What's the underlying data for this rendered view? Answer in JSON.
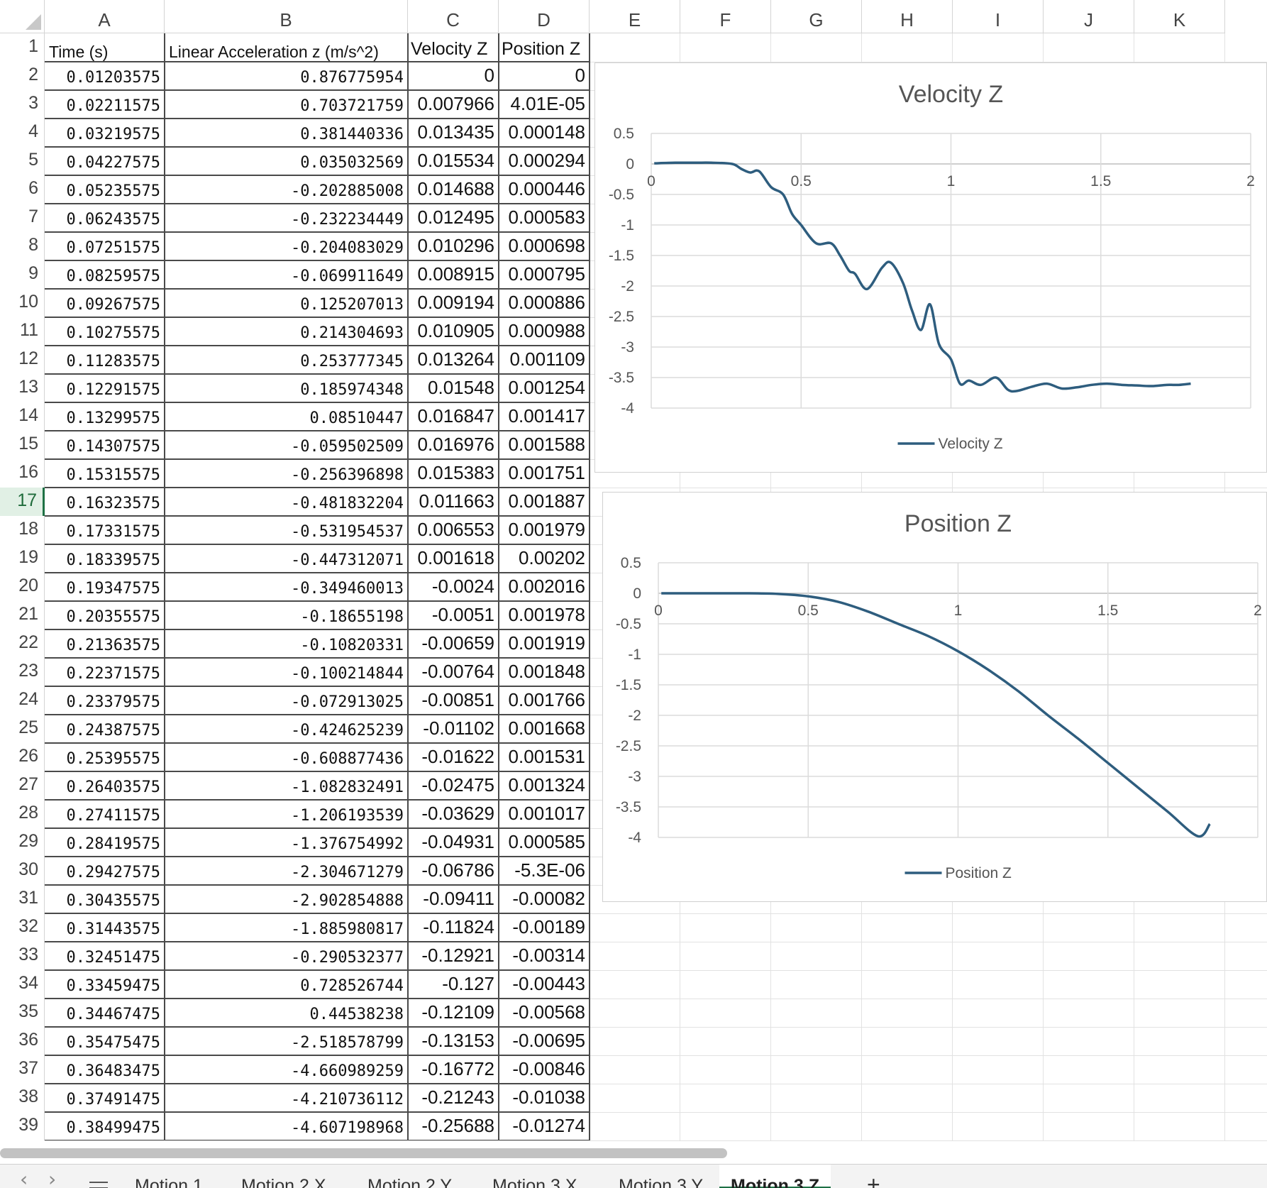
{
  "columns": [
    "A",
    "B",
    "C",
    "D",
    "E",
    "F",
    "G",
    "H",
    "I",
    "J",
    "K"
  ],
  "header_row": {
    "row": "1",
    "a": "Time (s)",
    "b": "Linear Acceleration z (m/s^2)",
    "c": "Velocity Z",
    "d": "Position Z"
  },
  "active_row": "17",
  "rows": [
    {
      "n": "2",
      "a": "0.01203575",
      "b": "0.876775954",
      "c": "0",
      "d": "0"
    },
    {
      "n": "3",
      "a": "0.02211575",
      "b": "0.703721759",
      "c": "0.007966",
      "d": "4.01E-05"
    },
    {
      "n": "4",
      "a": "0.03219575",
      "b": "0.381440336",
      "c": "0.013435",
      "d": "0.000148"
    },
    {
      "n": "5",
      "a": "0.04227575",
      "b": "0.035032569",
      "c": "0.015534",
      "d": "0.000294"
    },
    {
      "n": "6",
      "a": "0.05235575",
      "b": "-0.202885008",
      "c": "0.014688",
      "d": "0.000446"
    },
    {
      "n": "7",
      "a": "0.06243575",
      "b": "-0.232234449",
      "c": "0.012495",
      "d": "0.000583"
    },
    {
      "n": "8",
      "a": "0.07251575",
      "b": "-0.204083029",
      "c": "0.010296",
      "d": "0.000698"
    },
    {
      "n": "9",
      "a": "0.08259575",
      "b": "-0.069911649",
      "c": "0.008915",
      "d": "0.000795"
    },
    {
      "n": "10",
      "a": "0.09267575",
      "b": "0.125207013",
      "c": "0.009194",
      "d": "0.000886"
    },
    {
      "n": "11",
      "a": "0.10275575",
      "b": "0.214304693",
      "c": "0.010905",
      "d": "0.000988"
    },
    {
      "n": "12",
      "a": "0.11283575",
      "b": "0.253777345",
      "c": "0.013264",
      "d": "0.001109"
    },
    {
      "n": "13",
      "a": "0.12291575",
      "b": "0.185974348",
      "c": "0.01548",
      "d": "0.001254"
    },
    {
      "n": "14",
      "a": "0.13299575",
      "b": "0.08510447",
      "c": "0.016847",
      "d": "0.001417"
    },
    {
      "n": "15",
      "a": "0.14307575",
      "b": "-0.059502509",
      "c": "0.016976",
      "d": "0.001588"
    },
    {
      "n": "16",
      "a": "0.15315575",
      "b": "-0.256396898",
      "c": "0.015383",
      "d": "0.001751"
    },
    {
      "n": "17",
      "a": "0.16323575",
      "b": "-0.481832204",
      "c": "0.011663",
      "d": "0.001887"
    },
    {
      "n": "18",
      "a": "0.17331575",
      "b": "-0.531954537",
      "c": "0.006553",
      "d": "0.001979"
    },
    {
      "n": "19",
      "a": "0.18339575",
      "b": "-0.447312071",
      "c": "0.001618",
      "d": "0.00202"
    },
    {
      "n": "20",
      "a": "0.19347575",
      "b": "-0.349460013",
      "c": "-0.0024",
      "d": "0.002016"
    },
    {
      "n": "21",
      "a": "0.20355575",
      "b": "-0.18655198",
      "c": "-0.0051",
      "d": "0.001978"
    },
    {
      "n": "22",
      "a": "0.21363575",
      "b": "-0.10820331",
      "c": "-0.00659",
      "d": "0.001919"
    },
    {
      "n": "23",
      "a": "0.22371575",
      "b": "-0.100214844",
      "c": "-0.00764",
      "d": "0.001848"
    },
    {
      "n": "24",
      "a": "0.23379575",
      "b": "-0.072913025",
      "c": "-0.00851",
      "d": "0.001766"
    },
    {
      "n": "25",
      "a": "0.24387575",
      "b": "-0.424625239",
      "c": "-0.01102",
      "d": "0.001668"
    },
    {
      "n": "26",
      "a": "0.25395575",
      "b": "-0.608877436",
      "c": "-0.01622",
      "d": "0.001531"
    },
    {
      "n": "27",
      "a": "0.26403575",
      "b": "-1.082832491",
      "c": "-0.02475",
      "d": "0.001324"
    },
    {
      "n": "28",
      "a": "0.27411575",
      "b": "-1.206193539",
      "c": "-0.03629",
      "d": "0.001017"
    },
    {
      "n": "29",
      "a": "0.28419575",
      "b": "-1.376754992",
      "c": "-0.04931",
      "d": "0.000585"
    },
    {
      "n": "30",
      "a": "0.29427575",
      "b": "-2.304671279",
      "c": "-0.06786",
      "d": "-5.3E-06"
    },
    {
      "n": "31",
      "a": "0.30435575",
      "b": "-2.902854888",
      "c": "-0.09411",
      "d": "-0.00082"
    },
    {
      "n": "32",
      "a": "0.31443575",
      "b": "-1.885980817",
      "c": "-0.11824",
      "d": "-0.00189"
    },
    {
      "n": "33",
      "a": "0.32451475",
      "b": "-0.290532377",
      "c": "-0.12921",
      "d": "-0.00314"
    },
    {
      "n": "34",
      "a": "0.33459475",
      "b": "0.728526744",
      "c": "-0.127",
      "d": "-0.00443"
    },
    {
      "n": "35",
      "a": "0.34467475",
      "b": "0.44538238",
      "c": "-0.12109",
      "d": "-0.00568"
    },
    {
      "n": "36",
      "a": "0.35475475",
      "b": "-2.518578799",
      "c": "-0.13153",
      "d": "-0.00695"
    },
    {
      "n": "37",
      "a": "0.36483475",
      "b": "-4.660989259",
      "c": "-0.16772",
      "d": "-0.00846"
    },
    {
      "n": "38",
      "a": "0.37491475",
      "b": "-4.210736112",
      "c": "-0.21243",
      "d": "-0.01038"
    },
    {
      "n": "39",
      "a": "0.38499475",
      "b": "-4.607198968",
      "c": "-0.25688",
      "d": "-0.01274"
    }
  ],
  "sheet_tabs": {
    "items": [
      "Motion 1",
      "Motion 2 X",
      "Motion 2 Y",
      "Motion 3 X",
      "Motion 3 Y",
      "Motion 3 Z"
    ],
    "active": "Motion 3 Z",
    "add_label": "+"
  },
  "colors": {
    "series": "#2e5d7e",
    "active_tab_accent": "#1e7145"
  },
  "chart_data": [
    {
      "type": "line",
      "title": "Velocity Z",
      "legend": [
        "Velocity Z"
      ],
      "legend_position": "bottom",
      "xlim": [
        0,
        2
      ],
      "ylim": [
        -4,
        0.5
      ],
      "x_ticks": [
        "0",
        "0.5",
        "1",
        "1.5",
        "2"
      ],
      "y_ticks": [
        "0.5",
        "0",
        "-0.5",
        "-1",
        "-1.5",
        "-2",
        "-2.5",
        "-3",
        "-3.5",
        "-4"
      ],
      "grid": true,
      "series": [
        {
          "name": "Velocity Z",
          "x": [
            0.01,
            0.08,
            0.15,
            0.2,
            0.27,
            0.3,
            0.33,
            0.36,
            0.4,
            0.44,
            0.47,
            0.5,
            0.55,
            0.6,
            0.63,
            0.66,
            0.68,
            0.72,
            0.77,
            0.8,
            0.84,
            0.87,
            0.9,
            0.93,
            0.96,
            1.0,
            1.03,
            1.06,
            1.1,
            1.15,
            1.19,
            1.22,
            1.27,
            1.32,
            1.37,
            1.42,
            1.47,
            1.52,
            1.57,
            1.62,
            1.67,
            1.72,
            1.76,
            1.8
          ],
          "y": [
            0.01,
            0.02,
            0.02,
            0.02,
            0.0,
            -0.08,
            -0.14,
            -0.12,
            -0.38,
            -0.5,
            -0.82,
            -1.0,
            -1.3,
            -1.3,
            -1.5,
            -1.75,
            -1.8,
            -2.05,
            -1.7,
            -1.62,
            -1.95,
            -2.4,
            -2.72,
            -2.3,
            -2.95,
            -3.2,
            -3.6,
            -3.55,
            -3.62,
            -3.5,
            -3.7,
            -3.72,
            -3.65,
            -3.6,
            -3.68,
            -3.66,
            -3.62,
            -3.6,
            -3.62,
            -3.63,
            -3.64,
            -3.62,
            -3.62,
            -3.6
          ]
        }
      ]
    },
    {
      "type": "line",
      "title": "Position Z",
      "legend": [
        "Position Z"
      ],
      "legend_position": "bottom",
      "xlim": [
        0,
        2
      ],
      "ylim": [
        -4,
        0.5
      ],
      "x_ticks": [
        "0",
        "0.5",
        "1",
        "1.5",
        "2"
      ],
      "y_ticks": [
        "0.5",
        "0",
        "-0.5",
        "-1",
        "-1.5",
        "-2",
        "-2.5",
        "-3",
        "-3.5",
        "-4"
      ],
      "grid": true,
      "series": [
        {
          "name": "Position Z",
          "x": [
            0.01,
            0.3,
            0.4,
            0.5,
            0.6,
            0.7,
            0.8,
            0.9,
            1.0,
            1.1,
            1.2,
            1.3,
            1.4,
            1.5,
            1.6,
            1.7,
            1.8,
            1.84
          ],
          "y": [
            0.0,
            0.0,
            -0.01,
            -0.05,
            -0.14,
            -0.3,
            -0.5,
            -0.7,
            -0.95,
            -1.25,
            -1.6,
            -2.0,
            -2.38,
            -2.78,
            -3.18,
            -3.58,
            -3.98,
            -3.78
          ]
        }
      ]
    }
  ]
}
